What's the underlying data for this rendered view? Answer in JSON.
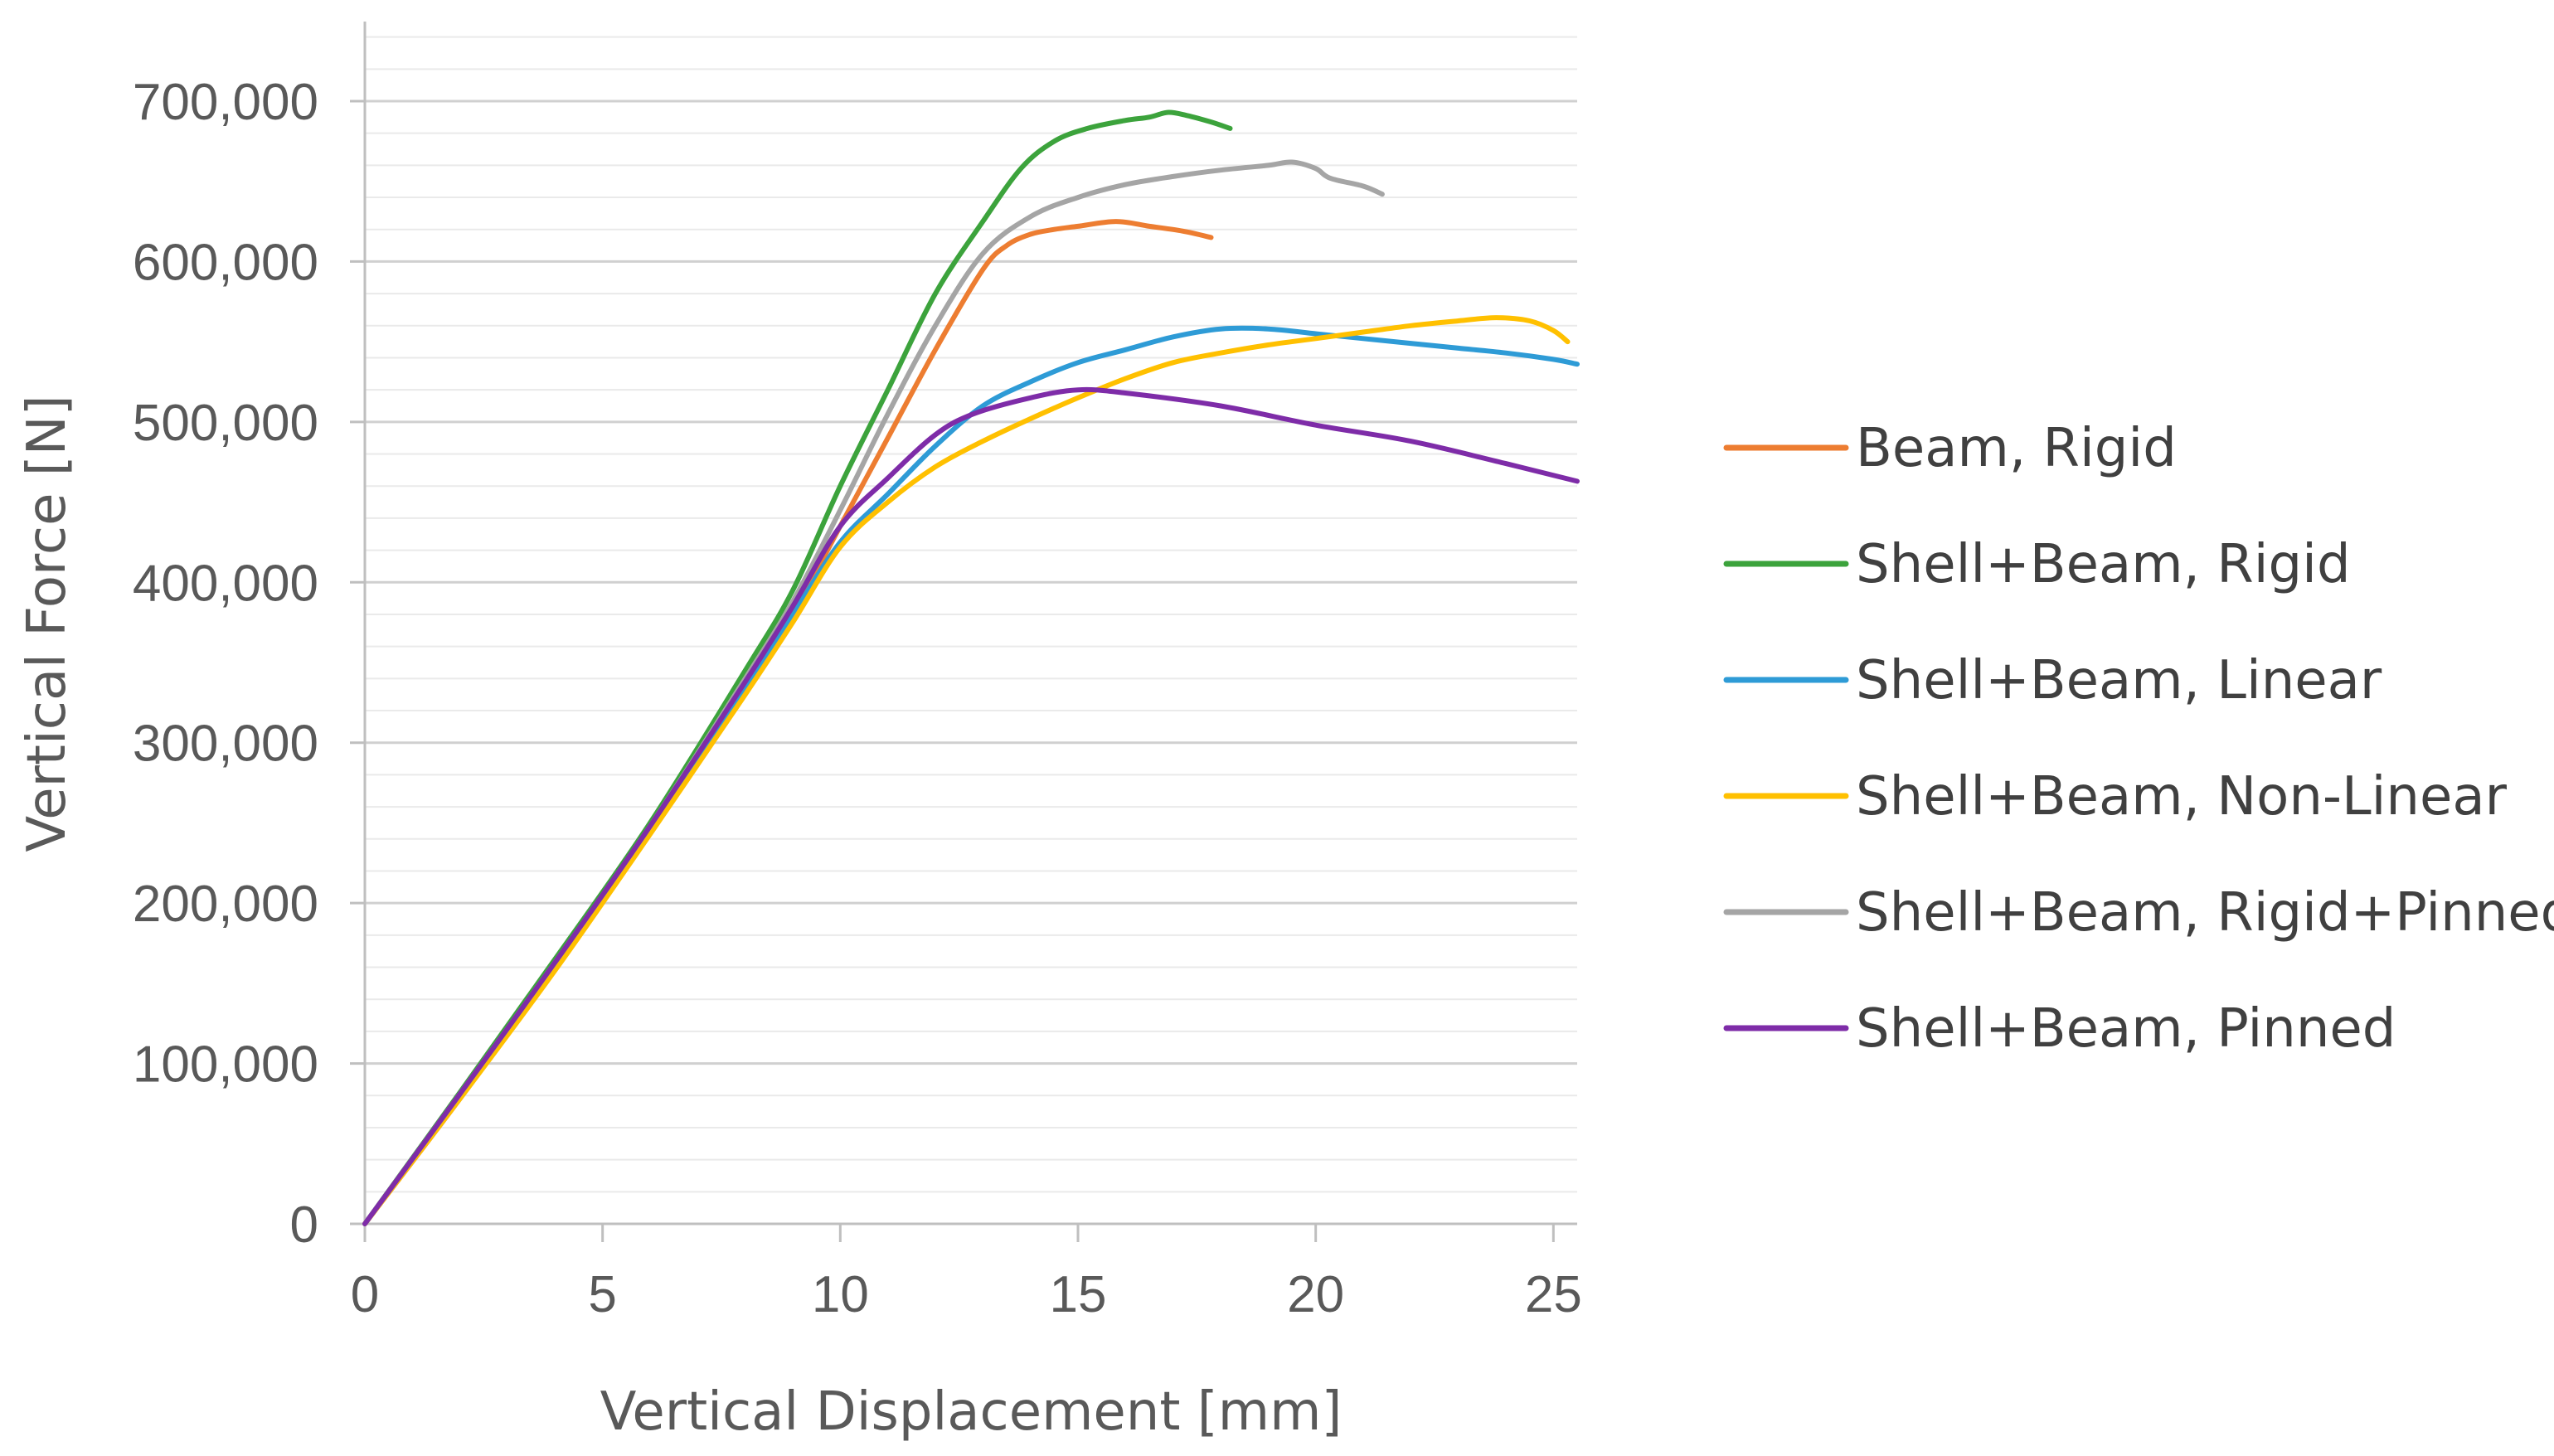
{
  "chart_data": {
    "type": "line",
    "title": "",
    "xlabel": "Vertical Displacement [mm]",
    "ylabel": "Vertical Force [N]",
    "xlim": [
      0,
      25.5
    ],
    "ylim": [
      0,
      700000
    ],
    "x_ticks": [
      0,
      5,
      10,
      15,
      20,
      25
    ],
    "y_ticks": [
      0,
      100000,
      200000,
      300000,
      400000,
      500000,
      600000,
      700000
    ],
    "y_tick_labels": [
      "0",
      "100,000",
      "200,000",
      "300,000",
      "400,000",
      "500,000",
      "600,000",
      "700,000"
    ],
    "y_minor_step": 20000,
    "grid": true,
    "legend_position": "right",
    "series": [
      {
        "name": "Beam, Rigid",
        "color": "#ED7D31",
        "points": [
          [
            0,
            0
          ],
          [
            2,
            78000
          ],
          [
            4,
            160000
          ],
          [
            6,
            245000
          ],
          [
            8,
            335000
          ],
          [
            9,
            380000
          ],
          [
            10,
            435000
          ],
          [
            11,
            490000
          ],
          [
            12,
            545000
          ],
          [
            13,
            595000
          ],
          [
            13.5,
            610000
          ],
          [
            14,
            617000
          ],
          [
            14.5,
            620000
          ],
          [
            15,
            622000
          ],
          [
            15.8,
            625000
          ],
          [
            16.5,
            622000
          ],
          [
            17.2,
            619000
          ],
          [
            17.8,
            615000
          ]
        ]
      },
      {
        "name": "Shell+Beam, Rigid",
        "color": "#3CA33C",
        "points": [
          [
            0,
            0
          ],
          [
            2,
            82000
          ],
          [
            4,
            165000
          ],
          [
            6,
            250000
          ],
          [
            8,
            345000
          ],
          [
            9,
            395000
          ],
          [
            10,
            460000
          ],
          [
            11,
            520000
          ],
          [
            12,
            580000
          ],
          [
            13,
            625000
          ],
          [
            13.8,
            658000
          ],
          [
            14.5,
            675000
          ],
          [
            15.2,
            683000
          ],
          [
            16,
            688000
          ],
          [
            16.5,
            690000
          ],
          [
            16.9,
            693000
          ],
          [
            17.3,
            691000
          ],
          [
            17.8,
            687000
          ],
          [
            18.2,
            683000
          ]
        ]
      },
      {
        "name": "Shell+Beam, Linear",
        "color": "#2E9BD6",
        "points": [
          [
            0,
            0
          ],
          [
            2,
            80000
          ],
          [
            4,
            160000
          ],
          [
            6,
            245000
          ],
          [
            8,
            335000
          ],
          [
            9,
            380000
          ],
          [
            10,
            425000
          ],
          [
            11,
            455000
          ],
          [
            12,
            485000
          ],
          [
            13,
            510000
          ],
          [
            14,
            525000
          ],
          [
            15,
            537000
          ],
          [
            16,
            545000
          ],
          [
            17,
            553000
          ],
          [
            18,
            558000
          ],
          [
            19,
            558000
          ],
          [
            20,
            555000
          ],
          [
            21,
            552000
          ],
          [
            22,
            549000
          ],
          [
            23,
            546000
          ],
          [
            24,
            543000
          ],
          [
            25,
            539000
          ],
          [
            25.5,
            536000
          ]
        ]
      },
      {
        "name": "Shell+Beam, Non-Linear",
        "color": "#FFC000",
        "points": [
          [
            0,
            0
          ],
          [
            2,
            78000
          ],
          [
            4,
            158000
          ],
          [
            6,
            243000
          ],
          [
            8,
            330000
          ],
          [
            9,
            375000
          ],
          [
            10,
            422000
          ],
          [
            11,
            450000
          ],
          [
            12,
            472000
          ],
          [
            13,
            488000
          ],
          [
            14,
            502000
          ],
          [
            15,
            515000
          ],
          [
            16,
            527000
          ],
          [
            17,
            537000
          ],
          [
            18,
            543000
          ],
          [
            19,
            548000
          ],
          [
            20,
            552000
          ],
          [
            21,
            556000
          ],
          [
            22,
            560000
          ],
          [
            23,
            563000
          ],
          [
            23.8,
            565000
          ],
          [
            24.5,
            563000
          ],
          [
            25,
            557000
          ],
          [
            25.3,
            550000
          ]
        ]
      },
      {
        "name": "Shell+Beam, Rigid+Pinned",
        "color": "#A5A5A5",
        "points": [
          [
            0,
            0
          ],
          [
            2,
            81000
          ],
          [
            4,
            163000
          ],
          [
            6,
            248000
          ],
          [
            8,
            340000
          ],
          [
            9,
            388000
          ],
          [
            10,
            445000
          ],
          [
            11,
            505000
          ],
          [
            12,
            560000
          ],
          [
            13,
            605000
          ],
          [
            14,
            628000
          ],
          [
            15,
            640000
          ],
          [
            16,
            648000
          ],
          [
            17,
            653000
          ],
          [
            18,
            657000
          ],
          [
            19,
            660000
          ],
          [
            19.5,
            662000
          ],
          [
            20,
            658000
          ],
          [
            20.3,
            652000
          ],
          [
            21,
            647000
          ],
          [
            21.4,
            642000
          ]
        ]
      },
      {
        "name": "Shell+Beam, Pinned",
        "color": "#7E2CA8",
        "points": [
          [
            0,
            0
          ],
          [
            2,
            81000
          ],
          [
            4,
            163000
          ],
          [
            6,
            248000
          ],
          [
            8,
            338000
          ],
          [
            9,
            385000
          ],
          [
            10,
            435000
          ],
          [
            11,
            465000
          ],
          [
            12,
            492000
          ],
          [
            12.8,
            505000
          ],
          [
            14,
            515000
          ],
          [
            15,
            520000
          ],
          [
            16,
            518000
          ],
          [
            18,
            510000
          ],
          [
            20,
            498000
          ],
          [
            22,
            488000
          ],
          [
            24,
            474000
          ],
          [
            25.5,
            463000
          ]
        ]
      }
    ]
  }
}
